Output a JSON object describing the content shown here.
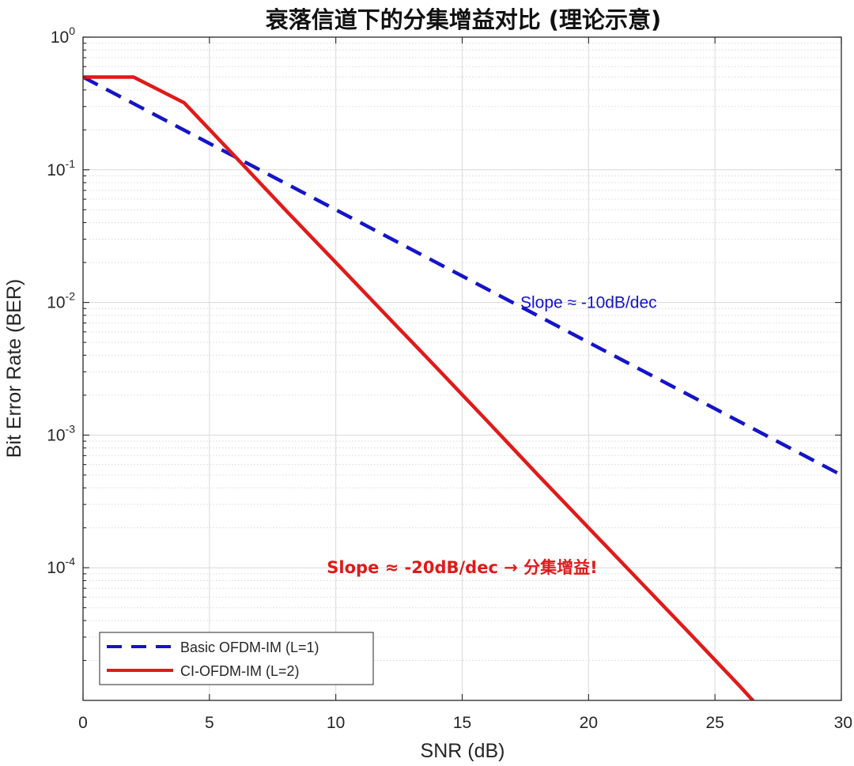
{
  "chart_data": {
    "type": "line",
    "title": "衰落信道下的分集增益对比 (理论示意)",
    "xlabel": "SNR (dB)",
    "ylabel": "Bit Error Rate (BER)",
    "xlim": [
      0,
      30
    ],
    "ylim": [
      1e-05,
      1
    ],
    "yscale": "log",
    "grid": true,
    "x_ticks": [
      0,
      5,
      10,
      15,
      20,
      25,
      30
    ],
    "x_tick_labels": [
      "0",
      "5",
      "10",
      "15",
      "20",
      "25",
      "30"
    ],
    "y_ticks": [
      {
        "value": 1,
        "base": "10",
        "exp": "0"
      },
      {
        "value": 0.1,
        "base": "10",
        "exp": "-1"
      },
      {
        "value": 0.01,
        "base": "10",
        "exp": "-2"
      },
      {
        "value": 0.001,
        "base": "10",
        "exp": "-3"
      },
      {
        "value": 0.0001,
        "base": "10",
        "exp": "-4"
      }
    ],
    "series": [
      {
        "name": "Basic OFDM-IM (L=1)",
        "color": "#1414c8",
        "style": "dashed",
        "x": [
          0,
          30
        ],
        "y": [
          0.5,
          0.0005
        ]
      },
      {
        "name": "CI-OFDM-IM (L=2)",
        "color": "#e01a1a",
        "style": "solid",
        "x": [
          0,
          2,
          4,
          6,
          8,
          10,
          12,
          14,
          16,
          18,
          20,
          22,
          24,
          26,
          26.6
        ],
        "y": [
          0.5,
          0.5,
          0.32,
          0.127,
          0.05,
          0.02,
          0.008,
          0.0032,
          0.00127,
          0.0005,
          0.0002,
          8e-05,
          3.2e-05,
          1.27e-05,
          9.5e-06
        ]
      }
    ],
    "legend_position": "bottom-left",
    "annotations": [
      {
        "text": "Slope ≈ -10dB/dec",
        "x": 20,
        "y": 0.01,
        "color": "#1414c8",
        "style": "normal"
      },
      {
        "text": "Slope ≈ -20dB/dec  → 分集增益!",
        "x": 15,
        "y": 0.0001,
        "color": "#e01a1a",
        "style": "bold"
      }
    ]
  }
}
